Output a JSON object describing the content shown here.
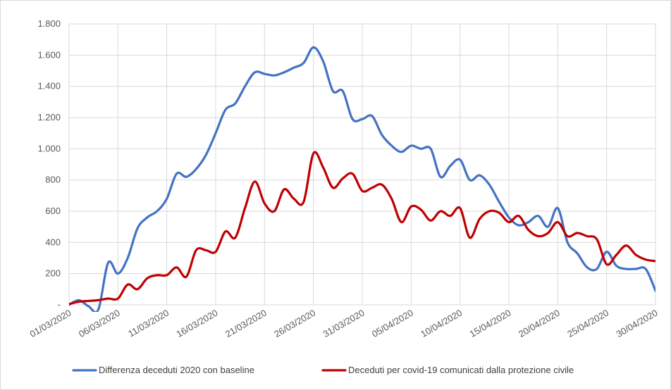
{
  "chart_data": {
    "type": "line",
    "title": "",
    "xlabel": "",
    "ylabel": "",
    "ylim": [
      0,
      1800
    ],
    "y_ticks": [
      0,
      200,
      400,
      600,
      800,
      1000,
      1200,
      1400,
      1600,
      1800
    ],
    "y_tick_labels": [
      "-",
      "200",
      "400",
      "600",
      "800",
      "1.000",
      "1.200",
      "1.400",
      "1.600",
      "1.800"
    ],
    "x_tick_labels": [
      "01/03/2020",
      "06/03/2020",
      "11/03/2020",
      "16/03/2020",
      "21/03/2020",
      "26/03/2020",
      "31/03/2020",
      "05/04/2020",
      "10/04/2020",
      "15/04/2020",
      "20/04/2020",
      "25/04/2020",
      "30/04/2020"
    ],
    "x": [
      "01/03/2020",
      "02/03/2020",
      "03/03/2020",
      "04/03/2020",
      "05/03/2020",
      "06/03/2020",
      "07/03/2020",
      "08/03/2020",
      "09/03/2020",
      "10/03/2020",
      "11/03/2020",
      "12/03/2020",
      "13/03/2020",
      "14/03/2020",
      "15/03/2020",
      "16/03/2020",
      "17/03/2020",
      "18/03/2020",
      "19/03/2020",
      "20/03/2020",
      "21/03/2020",
      "22/03/2020",
      "23/03/2020",
      "24/03/2020",
      "25/03/2020",
      "26/03/2020",
      "27/03/2020",
      "28/03/2020",
      "29/03/2020",
      "30/03/2020",
      "31/03/2020",
      "01/04/2020",
      "02/04/2020",
      "03/04/2020",
      "04/04/2020",
      "05/04/2020",
      "06/04/2020",
      "07/04/2020",
      "08/04/2020",
      "09/04/2020",
      "10/04/2020",
      "11/04/2020",
      "12/04/2020",
      "13/04/2020",
      "14/04/2020",
      "15/04/2020",
      "16/04/2020",
      "17/04/2020",
      "18/04/2020",
      "19/04/2020",
      "20/04/2020",
      "21/04/2020",
      "22/04/2020",
      "23/04/2020",
      "24/04/2020",
      "25/04/2020",
      "26/04/2020",
      "27/04/2020",
      "28/04/2020",
      "29/04/2020",
      "30/04/2020"
    ],
    "grid": true,
    "legend_position": "bottom",
    "series": [
      {
        "name": "Differenza deceduti 2020 con baseline",
        "color": "#4472c4",
        "values": [
          0,
          30,
          -10,
          -30,
          270,
          200,
          300,
          490,
          560,
          600,
          680,
          840,
          820,
          870,
          960,
          1100,
          1250,
          1290,
          1400,
          1490,
          1480,
          1470,
          1490,
          1520,
          1550,
          1650,
          1560,
          1370,
          1370,
          1190,
          1190,
          1210,
          1090,
          1020,
          980,
          1020,
          1000,
          1000,
          820,
          890,
          930,
          800,
          830,
          770,
          660,
          560,
          510,
          530,
          570,
          500,
          620,
          400,
          330,
          240,
          230,
          340,
          250,
          230,
          230,
          230,
          90
        ]
      },
      {
        "name": "Deceduti per covid-19 comunicati dalla protezione civile",
        "color": "#c00000",
        "values": [
          5,
          20,
          25,
          30,
          40,
          40,
          130,
          100,
          170,
          190,
          190,
          240,
          180,
          350,
          350,
          340,
          470,
          430,
          620,
          790,
          650,
          600,
          740,
          680,
          660,
          970,
          880,
          750,
          810,
          840,
          730,
          750,
          770,
          680,
          530,
          630,
          610,
          540,
          600,
          570,
          620,
          430,
          550,
          600,
          590,
          530,
          570,
          480,
          440,
          460,
          530,
          440,
          460,
          440,
          420,
          260,
          320,
          380,
          320,
          290,
          280
        ]
      }
    ]
  }
}
